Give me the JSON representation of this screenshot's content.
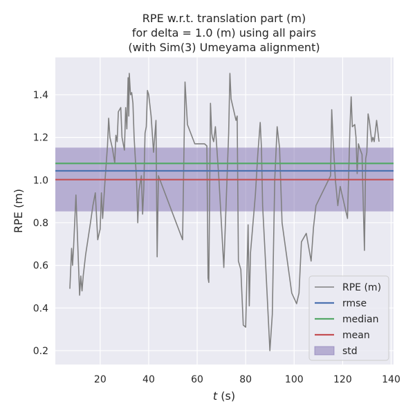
{
  "chart_data": {
    "type": "line",
    "title_lines": [
      "RPE w.r.t. translation part (m)",
      "for delta = 1.0 (m) using all pairs",
      "(with Sim(3) Umeyama alignment)"
    ],
    "xlabel_italic": "t",
    "xlabel_rest": " (s)",
    "ylabel": "RPE (m)",
    "xlim": [
      1.5,
      141
    ],
    "ylim": [
      0.135,
      1.575
    ],
    "xticks": [
      20,
      40,
      60,
      80,
      100,
      120,
      140
    ],
    "yticks": [
      0.2,
      0.4,
      0.6,
      0.8,
      1.0,
      1.2,
      1.4
    ],
    "grid": true,
    "legend_position": "lower-right",
    "stats": {
      "rmse": 1.043,
      "median": 1.078,
      "mean": 1.002,
      "std_low": 0.853,
      "std_high": 1.152
    },
    "colors": {
      "rpe": "#808080",
      "rmse": "#4c72b0",
      "median": "#55a868",
      "mean": "#c44e52",
      "std": "#8172b2",
      "background": "#eaeaf2",
      "grid": "#ffffff"
    },
    "legend": [
      {
        "key": "rpe",
        "label": "RPE (m)",
        "kind": "line"
      },
      {
        "key": "rmse",
        "label": "rmse",
        "kind": "line"
      },
      {
        "key": "median",
        "label": "median",
        "kind": "line"
      },
      {
        "key": "mean",
        "label": "mean",
        "kind": "line"
      },
      {
        "key": "std",
        "label": "std",
        "kind": "patch"
      }
    ],
    "series": [
      {
        "key": "rpe",
        "name": "RPE (m)",
        "points": [
          [
            7.5,
            0.49
          ],
          [
            8.2,
            0.68
          ],
          [
            8.6,
            0.6
          ],
          [
            9,
            0.68
          ],
          [
            10,
            0.93
          ],
          [
            11.5,
            0.46
          ],
          [
            12,
            0.55
          ],
          [
            12.5,
            0.48
          ],
          [
            13,
            0.55
          ],
          [
            14,
            0.65
          ],
          [
            16,
            0.8
          ],
          [
            17,
            0.88
          ],
          [
            18,
            0.94
          ],
          [
            19,
            0.72
          ],
          [
            20,
            0.77
          ],
          [
            20.5,
            0.94
          ],
          [
            21,
            0.82
          ],
          [
            22,
            1.0
          ],
          [
            23,
            1.16
          ],
          [
            23.5,
            1.29
          ],
          [
            24,
            1.2
          ],
          [
            25,
            1.15
          ],
          [
            26,
            1.08
          ],
          [
            26.5,
            1.21
          ],
          [
            27,
            1.18
          ],
          [
            27.5,
            1.32
          ],
          [
            28.5,
            1.34
          ],
          [
            29,
            1.2
          ],
          [
            30,
            1.14
          ],
          [
            30.5,
            1.34
          ],
          [
            31,
            1.24
          ],
          [
            31.5,
            1.48
          ],
          [
            31.8,
            1.3
          ],
          [
            32,
            1.5
          ],
          [
            32.5,
            1.4
          ],
          [
            33,
            1.41
          ],
          [
            33.5,
            1.36
          ],
          [
            34,
            1.2
          ],
          [
            35,
            1.0
          ],
          [
            35.5,
            0.8
          ],
          [
            36,
            0.95
          ],
          [
            37,
            1.02
          ],
          [
            37.5,
            0.84
          ],
          [
            38,
            0.96
          ],
          [
            38.5,
            1.22
          ],
          [
            39,
            1.25
          ],
          [
            39.5,
            1.42
          ],
          [
            40,
            1.4
          ],
          [
            41,
            1.3
          ],
          [
            42,
            1.13
          ],
          [
            43,
            1.28
          ],
          [
            43.5,
            0.64
          ],
          [
            44,
            1.02
          ],
          [
            46,
            0.96
          ],
          [
            50,
            0.84
          ],
          [
            54,
            0.72
          ],
          [
            55,
            1.46
          ],
          [
            56,
            1.26
          ],
          [
            59,
            1.17
          ],
          [
            63,
            1.17
          ],
          [
            64,
            1.16
          ],
          [
            64.5,
            0.54
          ],
          [
            64.8,
            0.52
          ],
          [
            65.5,
            1.36
          ],
          [
            66,
            1.22
          ],
          [
            66.3,
            1.2
          ],
          [
            66.8,
            1.18
          ],
          [
            67.5,
            1.25
          ],
          [
            69,
            1.0
          ],
          [
            71,
            0.59
          ],
          [
            73,
            1.22
          ],
          [
            73.5,
            1.5
          ],
          [
            74,
            1.38
          ],
          [
            76,
            1.28
          ],
          [
            76.5,
            1.3
          ],
          [
            77,
            0.62
          ],
          [
            78,
            0.58
          ],
          [
            79,
            0.32
          ],
          [
            80,
            0.31
          ],
          [
            81,
            0.79
          ],
          [
            81.5,
            0.41
          ],
          [
            82,
            0.66
          ],
          [
            84,
            0.93
          ],
          [
            85,
            1.12
          ],
          [
            86,
            1.27
          ],
          [
            86.5,
            1.15
          ],
          [
            87,
            0.88
          ],
          [
            88,
            0.66
          ],
          [
            90,
            0.2
          ],
          [
            91,
            0.37
          ],
          [
            92,
            1.0
          ],
          [
            93,
            1.25
          ],
          [
            94,
            1.15
          ],
          [
            95,
            0.8
          ],
          [
            99,
            0.47
          ],
          [
            101,
            0.42
          ],
          [
            102,
            0.47
          ],
          [
            103,
            0.71
          ],
          [
            105,
            0.75
          ],
          [
            107,
            0.62
          ],
          [
            108,
            0.78
          ],
          [
            109,
            0.88
          ],
          [
            115,
            1.02
          ],
          [
            115.5,
            1.33
          ],
          [
            116,
            1.2
          ],
          [
            117,
            1.0
          ],
          [
            118,
            0.88
          ],
          [
            119,
            0.97
          ],
          [
            120,
            0.92
          ],
          [
            122,
            0.82
          ],
          [
            123,
            1.24
          ],
          [
            123.5,
            1.39
          ],
          [
            124,
            1.25
          ],
          [
            125,
            1.26
          ],
          [
            125.5,
            1.2
          ],
          [
            126,
            1.03
          ],
          [
            126.5,
            1.17
          ],
          [
            127,
            1.15
          ],
          [
            128,
            1.12
          ],
          [
            129,
            0.67
          ],
          [
            129.5,
            1.1
          ],
          [
            130,
            1.13
          ],
          [
            130.5,
            1.31
          ],
          [
            131,
            1.28
          ],
          [
            132,
            1.18
          ],
          [
            132.5,
            1.2
          ],
          [
            133,
            1.18
          ],
          [
            134,
            1.28
          ],
          [
            135,
            1.18
          ]
        ]
      }
    ]
  }
}
